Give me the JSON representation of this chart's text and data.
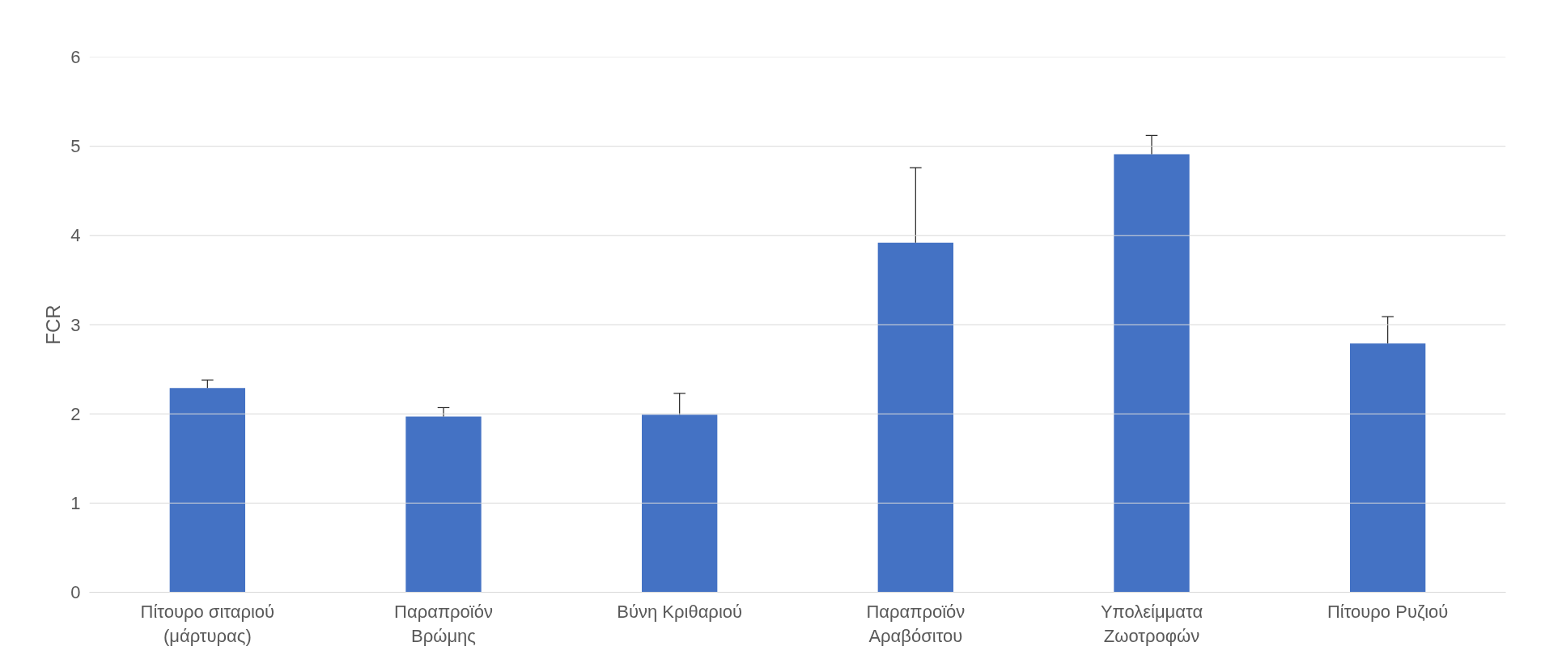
{
  "chart_data": {
    "type": "bar",
    "ylabel": "FCR",
    "categories": [
      "Πίτουρο σιταριού (μάρτυρας)",
      "Παραπροϊόν Βρώμης",
      "Βύνη Κριθαριού",
      "Παραπροϊόν Αραβόσιτου",
      "Υπολείμματα Ζωοτροφών",
      "Πίτουρο Ρυζιού"
    ],
    "values": [
      2.29,
      1.97,
      1.99,
      3.92,
      4.91,
      2.79
    ],
    "errors": [
      [
        2.29,
        2.38
      ],
      [
        1.97,
        2.07
      ],
      [
        1.99,
        2.23
      ],
      [
        3.92,
        4.76
      ],
      [
        4.91,
        5.12
      ],
      [
        2.79,
        3.09
      ]
    ],
    "color": "#4472c4",
    "ylim": [
      0,
      6
    ],
    "yticks": [
      0,
      1,
      2,
      3,
      4,
      5,
      6
    ],
    "grid": "y"
  }
}
